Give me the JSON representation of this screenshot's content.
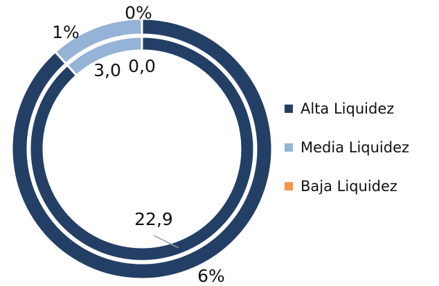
{
  "chart_data": {
    "type": "doughnut",
    "categories": [
      "Alta Liquidez",
      "Media Liquidez",
      "Baja Liquidez"
    ],
    "colors": [
      "#243f66",
      "#95b3d7",
      "#f79646"
    ],
    "series": [
      {
        "values": [
          22.9,
          3.0,
          0.0
        ],
        "value_labels": [
          "22,9",
          "3,0",
          "0,0"
        ]
      },
      {
        "values": [
          88.4,
          11.6,
          0
        ],
        "value_labels": [
          "6%",
          "1%",
          "0%"
        ]
      }
    ],
    "legend": "right"
  }
}
